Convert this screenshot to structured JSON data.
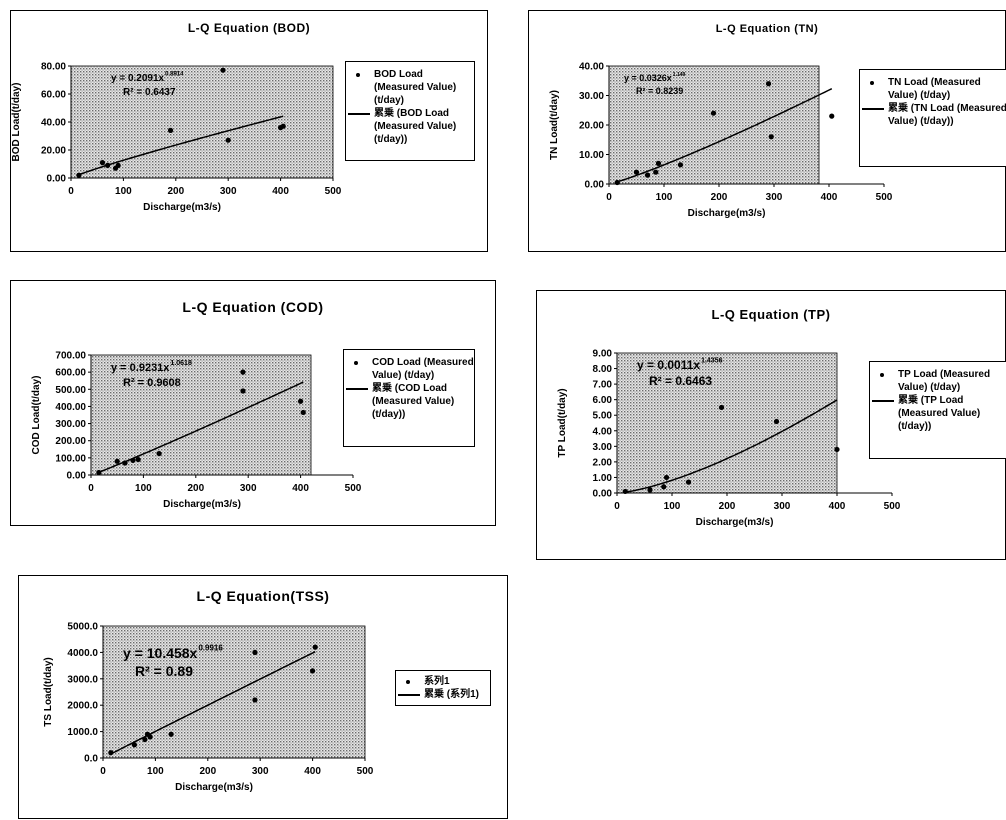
{
  "chart_data": [
    {
      "type": "scatter",
      "title": "L-Q Equation (BOD)",
      "xlabel": "Discharge(m3/s)",
      "ylabel": "BOD Load(t/day)",
      "xlim": [
        0,
        500
      ],
      "ylim": [
        0,
        80
      ],
      "xticks": [
        "0",
        "100",
        "200",
        "300",
        "400",
        "500"
      ],
      "yticks": [
        "0.00",
        "20.00",
        "40.00",
        "60.00",
        "80.00"
      ],
      "equation": {
        "coef": "y = 0.2091x",
        "exp": "0.8914",
        "r2": "R² = 0.6437"
      },
      "x": [
        15,
        60,
        70,
        85,
        90,
        190,
        290,
        300,
        400,
        405
      ],
      "y": [
        2,
        11,
        9,
        7,
        9,
        34,
        77,
        27,
        36,
        37
      ],
      "trend": {
        "a": 0.2091,
        "b": 0.8914
      },
      "legend": {
        "series": "BOD Load (Measured Value) (t/day)",
        "trendline": "累乗 (BOD Load (Measured Value) (t/day))"
      },
      "grid": false,
      "legend_position": "right"
    },
    {
      "type": "scatter",
      "title": "L-Q Equation (TN)",
      "xlabel": "Discharge(m3/s)",
      "ylabel": "TN Load(t/day)",
      "xlim": [
        0,
        500
      ],
      "ylim": [
        0,
        40
      ],
      "xticks": [
        "0",
        "100",
        "200",
        "300",
        "400",
        "500"
      ],
      "yticks": [
        "0.00",
        "10.00",
        "20.00",
        "30.00",
        "40.00"
      ],
      "equation": {
        "coef": "y = 0.0326x",
        "exp": "1.149",
        "r2": "R² = 0.8239"
      },
      "x": [
        15,
        50,
        70,
        85,
        90,
        130,
        190,
        290,
        295,
        405
      ],
      "y": [
        0.5,
        4,
        3,
        4,
        7,
        6.5,
        24,
        34,
        16,
        23
      ],
      "trend": {
        "a": 0.0326,
        "b": 1.149
      },
      "legend": {
        "series": "TN Load (Measured Value) (t/day)",
        "trendline": "累乗 (TN Load (Measured Value) (t/day))"
      },
      "grid": false,
      "legend_position": "right"
    },
    {
      "type": "scatter",
      "title": "L-Q Equation (COD)",
      "xlabel": "Discharge(m3/s)",
      "ylabel": "COD Load(t/day)",
      "xlim": [
        0,
        500
      ],
      "ylim": [
        0,
        700
      ],
      "xticks": [
        "0",
        "100",
        "200",
        "300",
        "400",
        "500"
      ],
      "yticks": [
        "0.00",
        "100.00",
        "200.00",
        "300.00",
        "400.00",
        "500.00",
        "600.00",
        "700.00"
      ],
      "equation": {
        "coef": "y = 0.9231x",
        "exp": "1.0618",
        "r2": "R² = 0.9608"
      },
      "x": [
        15,
        50,
        65,
        80,
        90,
        130,
        290,
        290,
        400,
        405
      ],
      "y": [
        15,
        80,
        70,
        85,
        90,
        125,
        600,
        490,
        430,
        365
      ],
      "trend": {
        "a": 0.9231,
        "b": 1.0618
      },
      "legend": {
        "series": "COD Load (Measured Value) (t/day)",
        "trendline": "累乗 (COD Load (Measured Value) (t/day))"
      },
      "grid": false,
      "legend_position": "right"
    },
    {
      "type": "scatter",
      "title": "L-Q Equation (TP)",
      "xlabel": "Discharge(m3/s)",
      "ylabel": "TP Load(t/day)",
      "xlim": [
        0,
        500
      ],
      "ylim": [
        0,
        9
      ],
      "xticks": [
        "0",
        "100",
        "200",
        "300",
        "400",
        "500"
      ],
      "yticks": [
        "0.00",
        "1.00",
        "2.00",
        "3.00",
        "4.00",
        "5.00",
        "6.00",
        "7.00",
        "8.00",
        "9.00"
      ],
      "equation": {
        "coef": "y = 0.0011x",
        "exp": "1.4356",
        "r2": "R² = 0.6463"
      },
      "x": [
        15,
        60,
        85,
        90,
        130,
        190,
        290,
        400
      ],
      "y": [
        0.1,
        0.2,
        0.4,
        1.0,
        0.7,
        5.5,
        4.6,
        2.8
      ],
      "trend": {
        "a": 0.0011,
        "b": 1.4356
      },
      "legend": {
        "series": "TP Load (Measured Value) (t/day)",
        "trendline": "累乗 (TP Load (Measured Value) (t/day))"
      },
      "grid": false,
      "legend_position": "right"
    },
    {
      "type": "scatter",
      "title": "L-Q Equation(TSS)",
      "xlabel": "Discharge(m3/s)",
      "ylabel": "TS Load(t/day)",
      "xlim": [
        0,
        500
      ],
      "ylim": [
        0,
        5000
      ],
      "xticks": [
        "0",
        "100",
        "200",
        "300",
        "400",
        "500"
      ],
      "yticks": [
        "0.0",
        "1000.0",
        "2000.0",
        "3000.0",
        "4000.0",
        "5000.0"
      ],
      "equation": {
        "coef": "y = 10.458x",
        "exp": "0.9916",
        "r2": "R² = 0.89"
      },
      "x": [
        15,
        60,
        80,
        85,
        90,
        130,
        290,
        290,
        400,
        405
      ],
      "y": [
        200,
        500,
        700,
        900,
        800,
        900,
        4000,
        2200,
        3300,
        4200
      ],
      "trend": {
        "a": 10.458,
        "b": 0.9916
      },
      "legend": {
        "series": "系列1",
        "trendline": "累乗 (系列1)"
      },
      "grid": false,
      "legend_position": "right"
    }
  ]
}
